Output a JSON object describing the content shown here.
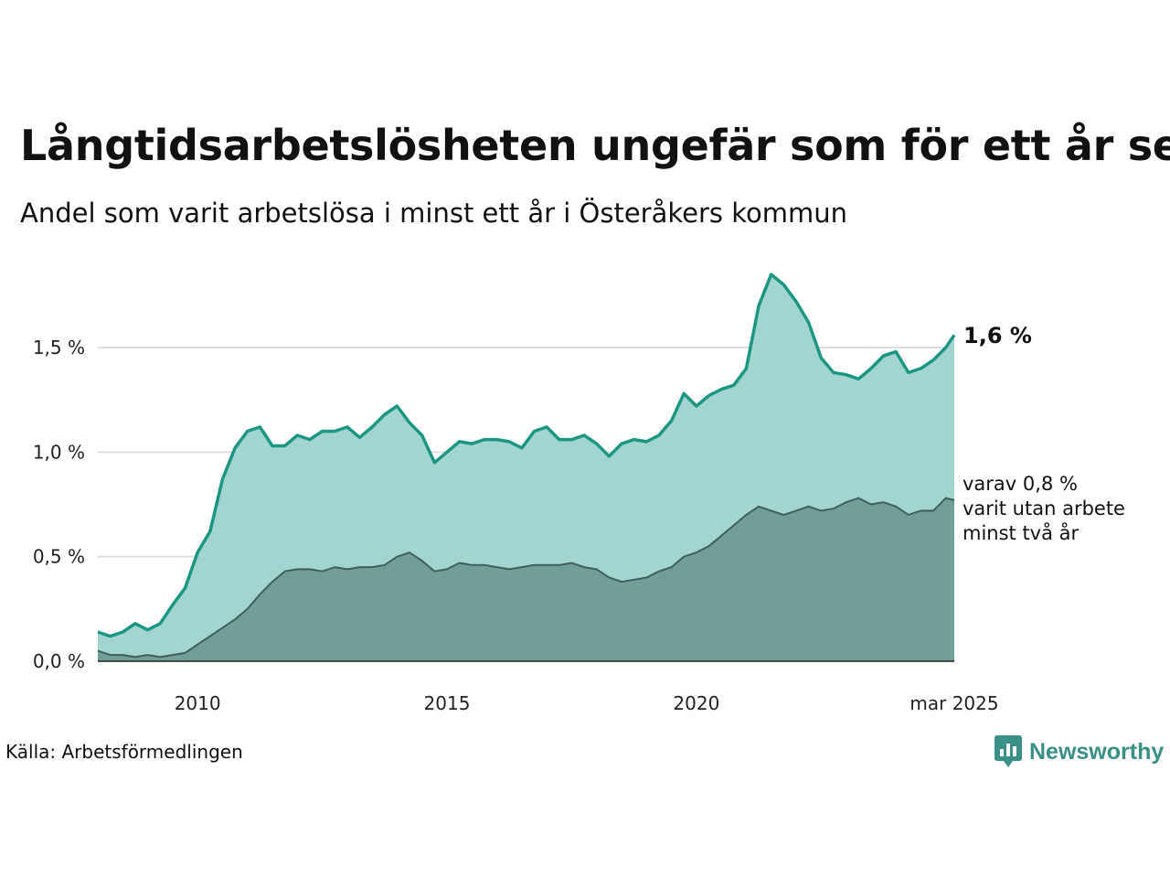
{
  "header": {
    "title": "Långtidsarbetslösheten ungefär som för ett år sen",
    "subtitle": "Andel som varit arbetslösa i minst ett år i Österåkers kommun"
  },
  "footer": {
    "source": "Källa: Arbetsförmedlingen",
    "brand": "Newsworthy"
  },
  "colors": {
    "main_line": "#1a9683",
    "main_fill": "#a2d5cf",
    "sub_fill": "#729e98",
    "sub_line": "#3f5f59",
    "grid": "#dddddd",
    "brand": "#3a8f86"
  },
  "chart_data": {
    "type": "area",
    "title": "Långtidsarbetslösheten ungefär som för ett år sen",
    "ylim": [
      0,
      1.9
    ],
    "xlim": [
      2008.0,
      2025.17
    ],
    "y_ticks": [
      {
        "value": 0.0,
        "label": "0,0 %"
      },
      {
        "value": 0.5,
        "label": "0,5 %"
      },
      {
        "value": 1.0,
        "label": "1,0 %"
      },
      {
        "value": 1.5,
        "label": "1,5 %"
      }
    ],
    "x_ticks": [
      {
        "value": 2010,
        "label": "2010"
      },
      {
        "value": 2015,
        "label": "2015"
      },
      {
        "value": 2020,
        "label": "2020"
      },
      {
        "value": 2025.17,
        "label": "mar 2025"
      }
    ],
    "grid": true,
    "annotations": {
      "main_value": "1,6 %",
      "sub_lines": [
        "varav 0,8 %",
        "varit utan arbete",
        "minst två år"
      ]
    },
    "series": [
      {
        "name": "",
        "x": [
          2008.0,
          2008.25,
          2008.5,
          2008.75,
          2009.0,
          2009.25,
          2009.5,
          2009.75,
          2010.0,
          2010.25,
          2010.5,
          2010.75,
          2011.0,
          2011.25,
          2011.5,
          2011.75,
          2012.0,
          2012.25,
          2012.5,
          2012.75,
          2013.0,
          2013.25,
          2013.5,
          2013.75,
          2014.0,
          2014.25,
          2014.5,
          2014.75,
          2015.0,
          2015.25,
          2015.5,
          2015.75,
          2016.0,
          2016.25,
          2016.5,
          2016.75,
          2017.0,
          2017.25,
          2017.5,
          2017.75,
          2018.0,
          2018.25,
          2018.5,
          2018.75,
          2019.0,
          2019.25,
          2019.5,
          2019.75,
          2020.0,
          2020.25,
          2020.5,
          2020.75,
          2021.0,
          2021.25,
          2021.5,
          2021.75,
          2022.0,
          2022.25,
          2022.5,
          2022.75,
          2023.0,
          2023.25,
          2023.5,
          2023.75,
          2024.0,
          2024.25,
          2024.5,
          2024.75,
          2025.0,
          2025.17
        ],
        "values": [
          0.14,
          0.12,
          0.14,
          0.18,
          0.15,
          0.18,
          0.27,
          0.35,
          0.52,
          0.62,
          0.87,
          1.02,
          1.1,
          1.12,
          1.03,
          1.03,
          1.08,
          1.06,
          1.1,
          1.1,
          1.12,
          1.07,
          1.12,
          1.18,
          1.22,
          1.14,
          1.08,
          0.95,
          1.0,
          1.05,
          1.04,
          1.06,
          1.06,
          1.05,
          1.02,
          1.1,
          1.12,
          1.06,
          1.06,
          1.08,
          1.04,
          0.98,
          1.04,
          1.06,
          1.05,
          1.08,
          1.15,
          1.28,
          1.22,
          1.27,
          1.3,
          1.32,
          1.4,
          1.7,
          1.85,
          1.8,
          1.72,
          1.62,
          1.45,
          1.38,
          1.37,
          1.35,
          1.4,
          1.46,
          1.48,
          1.38,
          1.4,
          1.44,
          1.5,
          1.56
        ]
      },
      {
        "name": "",
        "x": [
          2008.0,
          2008.25,
          2008.5,
          2008.75,
          2009.0,
          2009.25,
          2009.5,
          2009.75,
          2010.0,
          2010.25,
          2010.5,
          2010.75,
          2011.0,
          2011.25,
          2011.5,
          2011.75,
          2012.0,
          2012.25,
          2012.5,
          2012.75,
          2013.0,
          2013.25,
          2013.5,
          2013.75,
          2014.0,
          2014.25,
          2014.5,
          2014.75,
          2015.0,
          2015.25,
          2015.5,
          2015.75,
          2016.0,
          2016.25,
          2016.5,
          2016.75,
          2017.0,
          2017.25,
          2017.5,
          2017.75,
          2018.0,
          2018.25,
          2018.5,
          2018.75,
          2019.0,
          2019.25,
          2019.5,
          2019.75,
          2020.0,
          2020.25,
          2020.5,
          2020.75,
          2021.0,
          2021.25,
          2021.5,
          2021.75,
          2022.0,
          2022.25,
          2022.5,
          2022.75,
          2023.0,
          2023.25,
          2023.5,
          2023.75,
          2024.0,
          2024.25,
          2024.5,
          2024.75,
          2025.0,
          2025.17
        ],
        "values": [
          0.05,
          0.03,
          0.03,
          0.02,
          0.03,
          0.02,
          0.03,
          0.04,
          0.08,
          0.12,
          0.16,
          0.2,
          0.25,
          0.32,
          0.38,
          0.43,
          0.44,
          0.44,
          0.43,
          0.45,
          0.44,
          0.45,
          0.45,
          0.46,
          0.5,
          0.52,
          0.48,
          0.43,
          0.44,
          0.47,
          0.46,
          0.46,
          0.45,
          0.44,
          0.45,
          0.46,
          0.46,
          0.46,
          0.47,
          0.45,
          0.44,
          0.4,
          0.38,
          0.39,
          0.4,
          0.43,
          0.45,
          0.5,
          0.52,
          0.55,
          0.6,
          0.65,
          0.7,
          0.74,
          0.72,
          0.7,
          0.72,
          0.74,
          0.72,
          0.73,
          0.76,
          0.78,
          0.75,
          0.76,
          0.74,
          0.7,
          0.72,
          0.72,
          0.78,
          0.77
        ]
      }
    ]
  }
}
